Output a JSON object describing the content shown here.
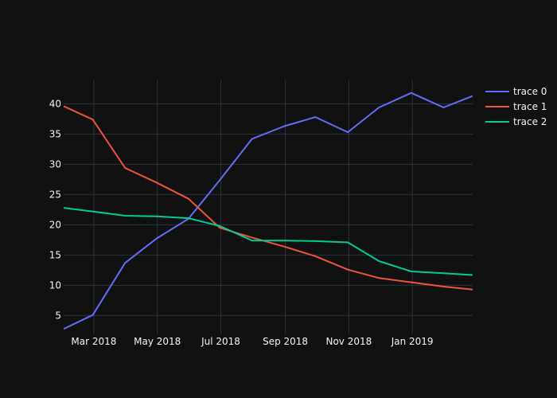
{
  "chart_data": {
    "type": "line",
    "title": "",
    "xlabel": "",
    "ylabel": "",
    "x": [
      "2018-01-31",
      "2018-02-28",
      "2018-03-31",
      "2018-04-30",
      "2018-05-31",
      "2018-06-30",
      "2018-07-31",
      "2018-08-31",
      "2018-09-30",
      "2018-10-31",
      "2018-11-30",
      "2018-12-31",
      "2019-01-31",
      "2019-02-28"
    ],
    "xlim": [
      "2018-01-31",
      "2019-02-28"
    ],
    "ylim": [
      1.9,
      44.0
    ],
    "x_ticks": [
      {
        "date": "2018-03-01",
        "label": "Mar 2018"
      },
      {
        "date": "2018-05-01",
        "label": "May 2018"
      },
      {
        "date": "2018-07-01",
        "label": "Jul 2018"
      },
      {
        "date": "2018-09-01",
        "label": "Sep 2018"
      },
      {
        "date": "2018-11-01",
        "label": "Nov 2018"
      },
      {
        "date": "2019-01-01",
        "label": "Jan 2019"
      }
    ],
    "y_ticks": [
      5,
      10,
      15,
      20,
      25,
      30,
      35,
      40
    ],
    "grid": true,
    "legend_position": "top-right",
    "series": [
      {
        "name": "trace 0",
        "color": "#636efa",
        "values": [
          2.8,
          5.1,
          13.7,
          17.7,
          21.0,
          27.4,
          34.2,
          36.3,
          37.8,
          35.3,
          39.4,
          41.8,
          39.4,
          41.3
        ]
      },
      {
        "name": "trace 1",
        "color": "#EF553B",
        "values": [
          39.6,
          37.4,
          29.4,
          27.0,
          24.3,
          19.5,
          17.9,
          16.4,
          14.8,
          12.6,
          11.2,
          10.5,
          9.8,
          9.3
        ]
      },
      {
        "name": "trace 2",
        "color": "#00cc96",
        "values": [
          22.8,
          22.2,
          21.5,
          21.4,
          21.1,
          19.8,
          17.4,
          17.4,
          17.3,
          17.1,
          14.0,
          12.3,
          12.0,
          11.7
        ]
      }
    ]
  }
}
